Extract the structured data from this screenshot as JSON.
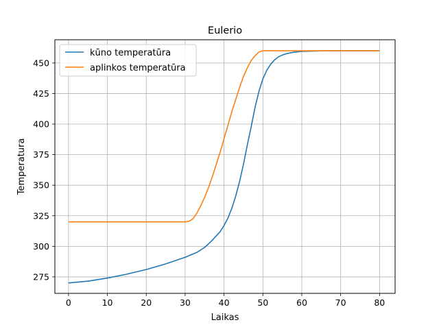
{
  "chart_data": {
    "type": "line",
    "title": "Eulerio",
    "xlabel": "Laikas",
    "ylabel": "Temperatura",
    "xlim": [
      -3.5,
      84
    ],
    "ylim": [
      261.5,
      469
    ],
    "xticks": [
      0,
      10,
      20,
      30,
      40,
      50,
      60,
      70,
      80
    ],
    "yticks": [
      275,
      300,
      325,
      350,
      375,
      400,
      425,
      450
    ],
    "grid": true,
    "legend_position": "upper-left",
    "series": [
      {
        "name": "kūno temperatūra",
        "color": "#1f77b4",
        "x": [
          0,
          5,
          10,
          15,
          20,
          25,
          30,
          33,
          35,
          37,
          39,
          40,
          41,
          42,
          43,
          44,
          45,
          46,
          47,
          48,
          49,
          50,
          51,
          52,
          53,
          54,
          55,
          56,
          57,
          58,
          60,
          65,
          70,
          75,
          80
        ],
        "y": [
          270,
          271.5,
          274,
          277.2,
          281,
          285.6,
          291,
          295,
          299,
          305,
          312,
          317,
          323,
          331,
          341,
          353,
          367,
          383,
          398,
          414,
          427,
          437,
          444,
          449,
          452.5,
          455,
          456.5,
          457.5,
          458.3,
          458.8,
          459.5,
          459.9,
          460,
          460,
          460
        ]
      },
      {
        "name": "aplinkos temperatūra",
        "color": "#ff7f0e",
        "x": [
          0,
          10,
          20,
          30,
          31,
          32,
          33,
          34,
          35,
          36,
          37,
          38,
          39,
          40,
          41,
          42,
          43,
          44,
          45,
          46,
          47,
          48,
          49,
          50,
          55,
          60,
          70,
          80
        ],
        "y": [
          320,
          320,
          320,
          320,
          320.5,
          322.5,
          327,
          333,
          340,
          348,
          357,
          367,
          377,
          388,
          399,
          410,
          420,
          430,
          439,
          446,
          452,
          456,
          459,
          460,
          460,
          460,
          460,
          460
        ]
      }
    ]
  }
}
